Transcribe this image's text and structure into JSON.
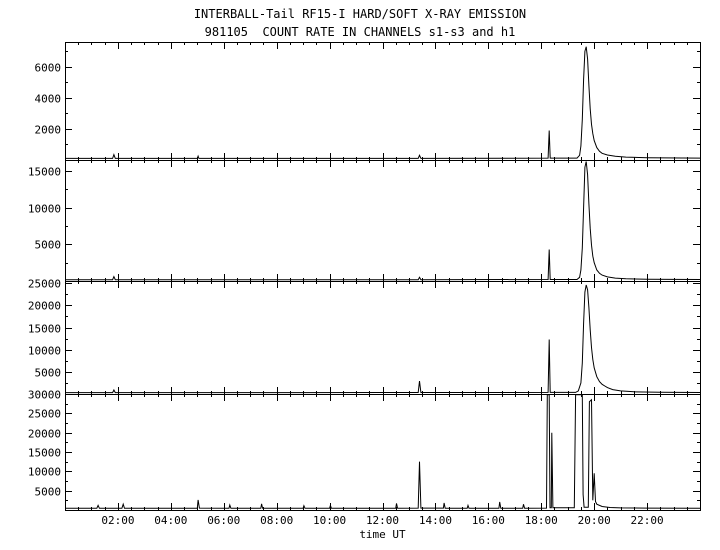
{
  "header": {
    "title": "INTERBALL-Tail RF15-I HARD/SOFT X-RAY EMISSION",
    "subtitle": "981105  COUNT RATE IN CHANNELS s1-s3 and h1"
  },
  "chart_data": {
    "type": "line",
    "title": "INTERBALL-Tail RF15-I HARD/SOFT X-RAY EMISSION",
    "subtitle": "981105  COUNT RATE IN CHANNELS s1-s3 and h1",
    "xlabel": "time UT",
    "xlim": [
      0,
      24
    ],
    "x_major_tick_hours": 2,
    "x_minor_tick_hours": 0.5,
    "xticks": [
      {
        "t": 2,
        "label": "02:00"
      },
      {
        "t": 4,
        "label": "04:00"
      },
      {
        "t": 6,
        "label": "06:00"
      },
      {
        "t": 8,
        "label": "08:00"
      },
      {
        "t": 10,
        "label": "10:00"
      },
      {
        "t": 12,
        "label": "12:00"
      },
      {
        "t": 14,
        "label": "14:00"
      },
      {
        "t": 16,
        "label": "16:00"
      },
      {
        "t": 18,
        "label": "18:00"
      },
      {
        "t": 20,
        "label": "20:00"
      },
      {
        "t": 22,
        "label": "22:00"
      }
    ],
    "line_color": "#000000",
    "grid": false,
    "legend": "none",
    "panels": [
      {
        "name": "channel-s1",
        "ylim": [
          0,
          7600
        ],
        "yticks": [
          2000,
          4000,
          6000
        ],
        "y_minor_step": 1000,
        "points": [
          [
            0,
            100
          ],
          [
            1.8,
            100
          ],
          [
            1.85,
            350
          ],
          [
            1.9,
            100
          ],
          [
            5.0,
            100
          ],
          [
            5.03,
            250
          ],
          [
            5.06,
            100
          ],
          [
            13.35,
            100
          ],
          [
            13.4,
            300
          ],
          [
            13.45,
            100
          ],
          [
            18.26,
            120
          ],
          [
            18.3,
            1900
          ],
          [
            18.34,
            120
          ],
          [
            19.35,
            120
          ],
          [
            19.45,
            300
          ],
          [
            19.5,
            900
          ],
          [
            19.55,
            2600
          ],
          [
            19.6,
            5200
          ],
          [
            19.65,
            7000
          ],
          [
            19.7,
            7300
          ],
          [
            19.75,
            6500
          ],
          [
            19.8,
            4800
          ],
          [
            19.85,
            3300
          ],
          [
            19.9,
            2300
          ],
          [
            19.95,
            1700
          ],
          [
            20.0,
            1250
          ],
          [
            20.1,
            800
          ],
          [
            20.2,
            560
          ],
          [
            20.3,
            430
          ],
          [
            20.5,
            320
          ],
          [
            20.8,
            240
          ],
          [
            21.2,
            190
          ],
          [
            22,
            150
          ],
          [
            24,
            120
          ]
        ]
      },
      {
        "name": "channel-s2",
        "ylim": [
          0,
          16500
        ],
        "yticks": [
          5000,
          10000,
          15000
        ],
        "y_minor_step": 2500,
        "points": [
          [
            0,
            180
          ],
          [
            1.8,
            180
          ],
          [
            1.85,
            600
          ],
          [
            1.9,
            180
          ],
          [
            13.35,
            180
          ],
          [
            13.4,
            500
          ],
          [
            13.45,
            180
          ],
          [
            18.26,
            200
          ],
          [
            18.3,
            4300
          ],
          [
            18.34,
            200
          ],
          [
            19.35,
            200
          ],
          [
            19.45,
            500
          ],
          [
            19.5,
            1500
          ],
          [
            19.55,
            4500
          ],
          [
            19.6,
            10000
          ],
          [
            19.65,
            15500
          ],
          [
            19.7,
            16300
          ],
          [
            19.75,
            14500
          ],
          [
            19.8,
            10500
          ],
          [
            19.85,
            7200
          ],
          [
            19.9,
            4900
          ],
          [
            19.95,
            3400
          ],
          [
            20.0,
            2500
          ],
          [
            20.1,
            1500
          ],
          [
            20.2,
            1050
          ],
          [
            20.3,
            800
          ],
          [
            20.5,
            560
          ],
          [
            20.8,
            400
          ],
          [
            21.2,
            300
          ],
          [
            22,
            230
          ],
          [
            24,
            200
          ]
        ]
      },
      {
        "name": "channel-s3",
        "ylim": [
          0,
          25500
        ],
        "yticks": [
          5000,
          10000,
          15000,
          20000,
          25000
        ],
        "y_minor_step": 2500,
        "points": [
          [
            0,
            320
          ],
          [
            1.8,
            320
          ],
          [
            1.85,
            900
          ],
          [
            1.9,
            320
          ],
          [
            9.0,
            320
          ],
          [
            13.35,
            330
          ],
          [
            13.4,
            2900
          ],
          [
            13.45,
            330
          ],
          [
            16.5,
            330
          ],
          [
            18.26,
            350
          ],
          [
            18.3,
            12300
          ],
          [
            18.34,
            350
          ],
          [
            19.3,
            350
          ],
          [
            19.4,
            700
          ],
          [
            19.5,
            2500
          ],
          [
            19.55,
            7000
          ],
          [
            19.6,
            16000
          ],
          [
            19.65,
            23000
          ],
          [
            19.7,
            24600
          ],
          [
            19.75,
            23500
          ],
          [
            19.8,
            19500
          ],
          [
            19.85,
            14500
          ],
          [
            19.9,
            10500
          ],
          [
            19.95,
            7800
          ],
          [
            20.0,
            5900
          ],
          [
            20.1,
            3900
          ],
          [
            20.2,
            2800
          ],
          [
            20.3,
            2200
          ],
          [
            20.4,
            1800
          ],
          [
            20.5,
            1450
          ],
          [
            20.7,
            1000
          ],
          [
            21.0,
            700
          ],
          [
            21.5,
            500
          ],
          [
            22.5,
            380
          ],
          [
            24,
            330
          ]
        ]
      },
      {
        "name": "channel-h1",
        "ylim": [
          0,
          30000
        ],
        "yticks": [
          5000,
          10000,
          15000,
          20000,
          25000,
          30000
        ],
        "y_minor_step": 2500,
        "points": [
          [
            0,
            450
          ],
          [
            1.2,
            450
          ],
          [
            1.25,
            1200
          ],
          [
            1.3,
            450
          ],
          [
            2.15,
            450
          ],
          [
            2.2,
            1500
          ],
          [
            2.25,
            450
          ],
          [
            3.5,
            450
          ],
          [
            5.0,
            450
          ],
          [
            5.03,
            2600
          ],
          [
            5.08,
            500
          ],
          [
            6.2,
            450
          ],
          [
            6.23,
            1300
          ],
          [
            6.27,
            450
          ],
          [
            7.4,
            450
          ],
          [
            7.43,
            1600
          ],
          [
            7.47,
            450
          ],
          [
            9.0,
            450
          ],
          [
            9.03,
            1100
          ],
          [
            9.07,
            450
          ],
          [
            10.0,
            450
          ],
          [
            10.03,
            1200
          ],
          [
            10.07,
            450
          ],
          [
            12.5,
            450
          ],
          [
            12.53,
            1700
          ],
          [
            12.57,
            450
          ],
          [
            13.35,
            500
          ],
          [
            13.4,
            12500
          ],
          [
            13.45,
            500
          ],
          [
            14.3,
            500
          ],
          [
            14.33,
            1800
          ],
          [
            14.37,
            470
          ],
          [
            15.2,
            450
          ],
          [
            15.23,
            1200
          ],
          [
            15.27,
            450
          ],
          [
            16.4,
            450
          ],
          [
            16.43,
            2100
          ],
          [
            16.47,
            450
          ],
          [
            17.3,
            450
          ],
          [
            17.33,
            1500
          ],
          [
            17.37,
            450
          ],
          [
            18.2,
            500
          ],
          [
            18.23,
            29800
          ],
          [
            18.3,
            29800
          ],
          [
            18.33,
            600
          ],
          [
            18.38,
            600
          ],
          [
            18.4,
            20000
          ],
          [
            18.44,
            600
          ],
          [
            19.25,
            600
          ],
          [
            19.3,
            29800
          ],
          [
            19.55,
            29800
          ],
          [
            19.58,
            4000
          ],
          [
            19.62,
            700
          ],
          [
            19.78,
            700
          ],
          [
            19.82,
            28000
          ],
          [
            19.9,
            28500
          ],
          [
            19.95,
            2500
          ],
          [
            20.0,
            9500
          ],
          [
            20.05,
            2200
          ],
          [
            20.1,
            1500
          ],
          [
            20.3,
            900
          ],
          [
            20.6,
            650
          ],
          [
            21.0,
            550
          ],
          [
            22,
            480
          ],
          [
            24,
            450
          ]
        ]
      }
    ]
  }
}
